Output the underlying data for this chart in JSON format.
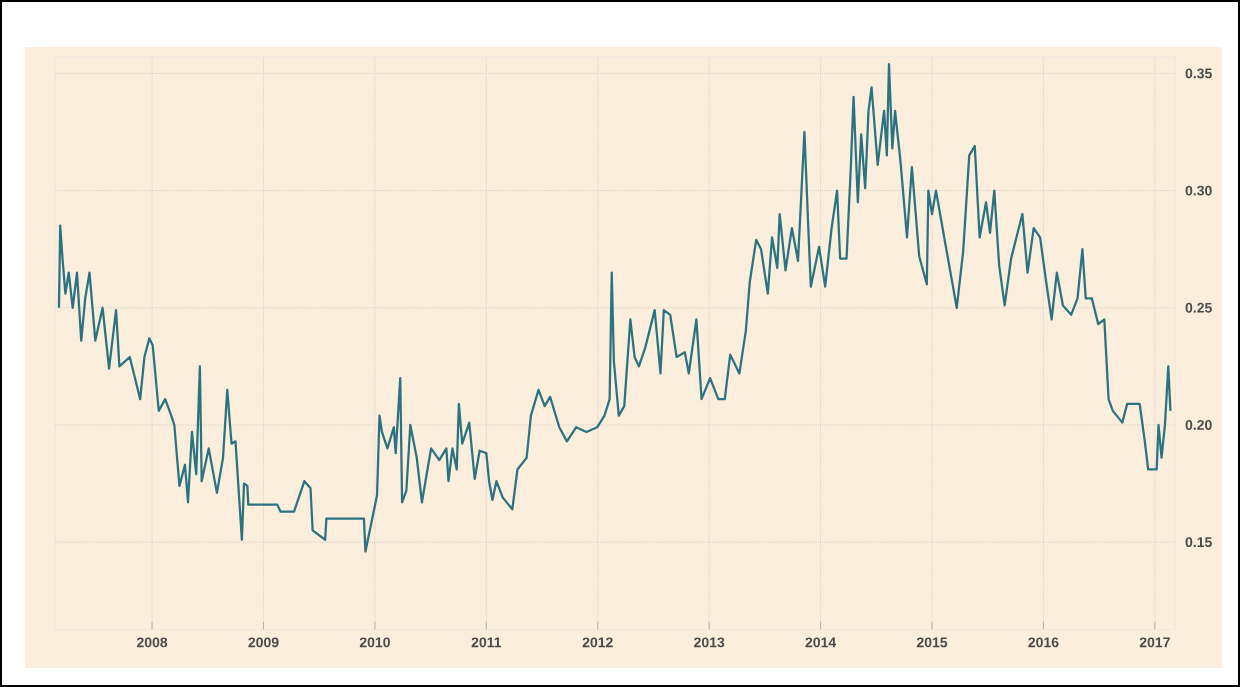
{
  "chart_data": {
    "type": "line",
    "x": [
      "2007-03-02",
      "2007-03-06",
      "2007-03-13",
      "2007-03-23",
      "2007-04-03",
      "2007-04-16",
      "2007-04-30",
      "2007-05-14",
      "2007-05-27",
      "2007-06-10",
      "2007-06-29",
      "2007-07-23",
      "2007-08-13",
      "2007-09-05",
      "2007-09-16",
      "2007-10-20",
      "2007-11-23",
      "2007-12-07",
      "2007-12-23",
      "2008-01-03",
      "2008-01-23",
      "2008-02-13",
      "2008-03-04",
      "2008-03-14",
      "2008-03-31",
      "2008-04-18",
      "2008-04-28",
      "2008-05-11",
      "2008-05-25",
      "2008-06-06",
      "2008-06-12",
      "2008-07-05",
      "2008-08-01",
      "2008-08-21",
      "2008-09-04",
      "2008-09-18",
      "2008-10-01",
      "2008-10-22",
      "2008-10-29",
      "2008-11-09",
      "2008-11-12",
      "2009-02-15",
      "2009-02-26",
      "2009-04-11",
      "2009-05-15",
      "2009-06-04",
      "2009-06-11",
      "2009-07-22",
      "2009-07-26",
      "2009-11-26",
      "2009-12-01",
      "2010-01-08",
      "2010-01-16",
      "2010-01-24",
      "2010-02-11",
      "2010-03-04",
      "2010-03-10",
      "2010-03-25",
      "2010-03-31",
      "2010-04-14",
      "2010-04-27",
      "2010-05-18",
      "2010-06-04",
      "2010-07-04",
      "2010-07-31",
      "2010-08-23",
      "2010-08-30",
      "2010-09-12",
      "2010-09-26",
      "2010-10-03",
      "2010-10-14",
      "2010-11-06",
      "2010-11-24",
      "2010-12-10",
      "2011-01-01",
      "2011-01-10",
      "2011-01-21",
      "2011-02-03",
      "2011-02-24",
      "2011-03-27",
      "2011-04-13",
      "2011-05-13",
      "2011-05-27",
      "2011-06-21",
      "2011-07-11",
      "2011-07-29",
      "2011-08-28",
      "2011-09-22",
      "2011-10-22",
      "2011-11-25",
      "2011-12-30",
      "2012-01-23",
      "2012-02-09",
      "2012-02-16",
      "2012-02-23",
      "2012-03-10",
      "2012-03-28",
      "2012-04-17",
      "2012-05-01",
      "2012-05-15",
      "2012-06-05",
      "2012-07-06",
      "2012-07-25",
      "2012-08-05",
      "2012-08-26",
      "2012-09-16",
      "2012-10-13",
      "2012-10-26",
      "2012-11-20",
      "2012-12-07",
      "2013-01-04",
      "2013-01-31",
      "2013-02-21",
      "2013-03-11",
      "2013-04-10",
      "2013-05-01",
      "2013-05-14",
      "2013-06-04",
      "2013-06-20",
      "2013-07-12",
      "2013-07-26",
      "2013-08-12",
      "2013-08-20",
      "2013-09-08",
      "2013-09-29",
      "2013-10-19",
      "2013-11-09",
      "2013-11-23",
      "2013-11-30",
      "2013-12-27",
      "2014-01-16",
      "2014-02-06",
      "2014-02-24",
      "2014-03-06",
      "2014-03-27",
      "2014-04-10",
      "2014-04-19",
      "2014-05-03",
      "2014-05-14",
      "2014-05-27",
      "2014-06-07",
      "2014-06-17",
      "2014-07-07",
      "2014-07-28",
      "2014-08-06",
      "2014-08-13",
      "2014-08-24",
      "2014-09-02",
      "2014-09-20",
      "2014-10-11",
      "2014-10-27",
      "2014-11-20",
      "2014-12-15",
      "2014-12-20",
      "2015-01-01",
      "2015-01-14",
      "2015-02-10",
      "2015-03-23",
      "2015-04-13",
      "2015-05-03",
      "2015-05-21",
      "2015-06-06",
      "2015-06-27",
      "2015-07-10",
      "2015-07-24",
      "2015-08-09",
      "2015-08-27",
      "2015-09-17",
      "2015-10-24",
      "2015-11-10",
      "2015-11-30",
      "2015-12-21",
      "2016-01-10",
      "2016-01-28",
      "2016-02-14",
      "2016-03-05",
      "2016-04-01",
      "2016-04-22",
      "2016-05-08",
      "2016-05-19",
      "2016-06-08",
      "2016-06-29",
      "2016-07-19",
      "2016-08-02",
      "2016-08-16",
      "2016-09-16",
      "2016-10-02",
      "2016-11-12",
      "2016-11-29",
      "2016-12-10",
      "2017-01-07",
      "2017-01-13",
      "2017-01-23",
      "2017-02-03",
      "2017-02-14",
      "2017-02-21"
    ],
    "values": [
      0.25,
      0.285,
      0.272,
      0.256,
      0.265,
      0.25,
      0.265,
      0.236,
      0.254,
      0.265,
      0.236,
      0.25,
      0.224,
      0.249,
      0.225,
      0.229,
      0.211,
      0.229,
      0.237,
      0.234,
      0.206,
      0.211,
      0.204,
      0.2,
      0.174,
      0.183,
      0.167,
      0.197,
      0.179,
      0.225,
      0.176,
      0.19,
      0.171,
      0.186,
      0.215,
      0.192,
      0.193,
      0.151,
      0.175,
      0.174,
      0.166,
      0.166,
      0.163,
      0.163,
      0.176,
      0.173,
      0.155,
      0.151,
      0.16,
      0.16,
      0.146,
      0.17,
      0.204,
      0.197,
      0.19,
      0.199,
      0.188,
      0.22,
      0.167,
      0.172,
      0.2,
      0.186,
      0.167,
      0.19,
      0.185,
      0.19,
      0.176,
      0.19,
      0.181,
      0.209,
      0.192,
      0.201,
      0.177,
      0.189,
      0.188,
      0.176,
      0.168,
      0.176,
      0.169,
      0.164,
      0.181,
      0.186,
      0.204,
      0.215,
      0.208,
      0.212,
      0.199,
      0.193,
      0.199,
      0.197,
      0.199,
      0.204,
      0.211,
      0.265,
      0.227,
      0.204,
      0.208,
      0.245,
      0.229,
      0.225,
      0.233,
      0.249,
      0.222,
      0.249,
      0.247,
      0.229,
      0.231,
      0.222,
      0.245,
      0.211,
      0.22,
      0.211,
      0.211,
      0.23,
      0.222,
      0.24,
      0.261,
      0.279,
      0.275,
      0.256,
      0.28,
      0.267,
      0.29,
      0.266,
      0.284,
      0.27,
      0.325,
      0.28,
      0.259,
      0.276,
      0.259,
      0.284,
      0.3,
      0.271,
      0.271,
      0.31,
      0.34,
      0.295,
      0.324,
      0.301,
      0.334,
      0.344,
      0.311,
      0.334,
      0.315,
      0.354,
      0.318,
      0.334,
      0.312,
      0.28,
      0.31,
      0.272,
      0.26,
      0.3,
      0.29,
      0.3,
      0.28,
      0.25,
      0.274,
      0.315,
      0.319,
      0.28,
      0.295,
      0.282,
      0.3,
      0.268,
      0.251,
      0.271,
      0.29,
      0.265,
      0.284,
      0.28,
      0.261,
      0.245,
      0.265,
      0.251,
      0.247,
      0.254,
      0.275,
      0.254,
      0.254,
      0.243,
      0.245,
      0.211,
      0.206,
      0.201,
      0.209,
      0.209,
      0.193,
      0.181,
      0.181,
      0.2,
      0.186,
      0.2,
      0.225,
      0.206
    ],
    "color": "#2b7380",
    "xlim": [
      "2007-02-17",
      "2017-03-08"
    ],
    "xticks": [
      "2008",
      "2009",
      "2010",
      "2011",
      "2012",
      "2013",
      "2014",
      "2015",
      "2016",
      "2017"
    ],
    "ylim": [
      0.1125,
      0.357
    ],
    "yticks": [
      {
        "value": 0.15,
        "label": "0.15"
      },
      {
        "value": 0.2,
        "label": "0.20"
      },
      {
        "value": 0.25,
        "label": "0.25"
      },
      {
        "value": 0.3,
        "label": "0.30"
      },
      {
        "value": 0.35,
        "label": "0.35"
      }
    ],
    "grid": true
  }
}
